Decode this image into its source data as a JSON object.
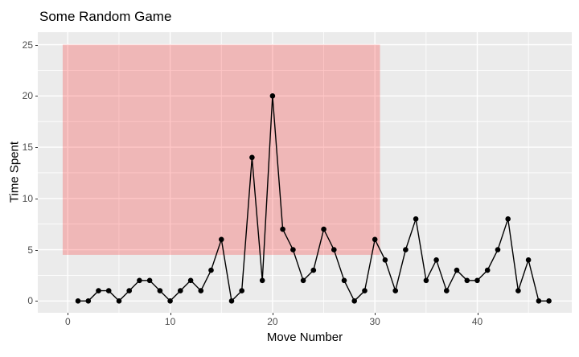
{
  "title": "Some Random Game",
  "x_axis": {
    "label": "Move Number",
    "ticks": [
      0,
      10,
      20,
      30,
      40
    ],
    "minor_ticks": [
      5,
      15,
      25,
      35,
      45
    ]
  },
  "y_axis": {
    "label": "Time Spent",
    "ticks": [
      0,
      5,
      10,
      15,
      20,
      25
    ],
    "minor_ticks": [
      2.5,
      7.5,
      12.5,
      17.5,
      22.5
    ]
  },
  "chart_data": {
    "type": "line",
    "title": "Some Random Game",
    "xlabel": "Move Number",
    "ylabel": "Time Spent",
    "x": [
      1,
      2,
      3,
      4,
      5,
      6,
      7,
      8,
      9,
      10,
      11,
      12,
      13,
      14,
      15,
      16,
      17,
      18,
      19,
      20,
      21,
      22,
      23,
      24,
      25,
      26,
      27,
      28,
      29,
      30,
      31,
      32,
      33,
      34,
      35,
      36,
      37,
      38,
      39,
      40,
      41,
      42,
      43,
      44,
      45,
      46,
      47
    ],
    "values": [
      0,
      0,
      1,
      1,
      0,
      1,
      2,
      2,
      1,
      0,
      1,
      2,
      1,
      3,
      6,
      0,
      1,
      14,
      2,
      20,
      7,
      5,
      2,
      3,
      7,
      5,
      2,
      0,
      1,
      6,
      4,
      1,
      5,
      8,
      2,
      4,
      1,
      3,
      2,
      2,
      3,
      5,
      8,
      1,
      4,
      0,
      0
    ],
    "xlim": [
      -2.9,
      49.4
    ],
    "ylim": [
      -1.25,
      26.25
    ],
    "grid": true,
    "legend": "none",
    "marker": "point",
    "annotation_rect": {
      "xmin": -0.5,
      "xmax": 30.5,
      "ymin": 4.5,
      "ymax": 25,
      "fill": "#FF0000",
      "alpha": 0.22
    }
  },
  "colors": {
    "page_bg": "#FFFFFF",
    "panel_bg": "#EBEBEB",
    "gridline": "#FFFFFF",
    "line": "#000000",
    "point": "#000000",
    "tick_label": "#4D4D4D",
    "tick_mark": "#333333",
    "title_text": "#000000"
  }
}
